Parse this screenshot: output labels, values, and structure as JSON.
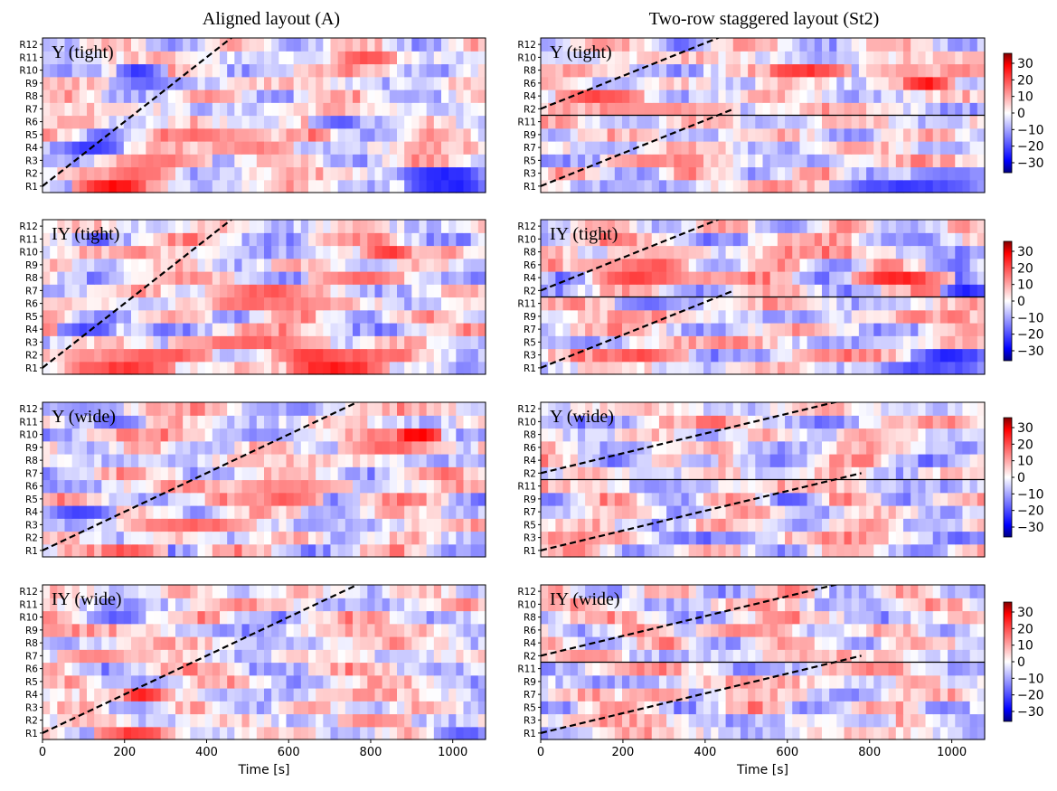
{
  "column_titles": [
    "Aligned layout (A)",
    "Two-row staggered layout (St2)"
  ],
  "colormap": {
    "name": "bwr",
    "low": "#0000ff",
    "mid": "#ffffff",
    "high": "#ff0000"
  },
  "colorbar": {
    "vmin": -36,
    "vmax": 36,
    "ticks": [
      30,
      20,
      10,
      0,
      -10,
      -20,
      -30
    ],
    "tick_labels": [
      "30",
      "20",
      "10",
      "0",
      "−10",
      "−20",
      "−30"
    ]
  },
  "chart_data": [
    {
      "type": "heatmap",
      "column": "A",
      "label": "Y (tight)",
      "xlabel": "",
      "xlim": [
        0,
        1080
      ],
      "rows": [
        "R1",
        "R2",
        "R3",
        "R4",
        "R5",
        "R6",
        "R7",
        "R8",
        "R9",
        "R10",
        "R11",
        "R12"
      ],
      "groups": [
        [
          "R1",
          "R2",
          "R3",
          "R4",
          "R5",
          "R6",
          "R7",
          "R8",
          "R9",
          "R10",
          "R11",
          "R12"
        ]
      ],
      "wake_lines": [
        [
          [
            0,
            0.5
          ],
          [
            480,
            12.5
          ]
        ]
      ],
      "features": [
        {
          "row": "R1",
          "t": [
            80,
            260
          ],
          "v": 32
        },
        {
          "row": "R1",
          "t": [
            880,
            1080
          ],
          "v": -34
        },
        {
          "row": "R2",
          "t": [
            150,
            330
          ],
          "v": 20
        },
        {
          "row": "R2",
          "t": [
            880,
            1080
          ],
          "v": -30
        },
        {
          "row": "R3",
          "t": [
            200,
            420
          ],
          "v": 18
        },
        {
          "row": "R4",
          "t": [
            50,
            200
          ],
          "v": -26
        },
        {
          "row": "R4",
          "t": [
            430,
            620
          ],
          "v": 18
        },
        {
          "row": "R5",
          "t": [
            300,
            560
          ],
          "v": 20
        },
        {
          "row": "R6",
          "t": [
            650,
            780
          ],
          "v": -22
        },
        {
          "row": "R9",
          "t": [
            160,
            320
          ],
          "v": -20
        },
        {
          "row": "R10",
          "t": [
            180,
            300
          ],
          "v": -30
        },
        {
          "row": "R11",
          "t": [
            720,
            860
          ],
          "v": 22
        }
      ]
    },
    {
      "type": "heatmap",
      "column": "St2",
      "label": "Y (tight)",
      "xlabel": "",
      "xlim": [
        0,
        1080
      ],
      "rows": [
        "R1",
        "R3",
        "R5",
        "R7",
        "R9",
        "R11",
        "R2",
        "R4",
        "R6",
        "R8",
        "R10",
        "R12"
      ],
      "groups": [
        [
          "R1",
          "R3",
          "R5",
          "R7",
          "R9",
          "R11"
        ],
        [
          "R2",
          "R4",
          "R6",
          "R8",
          "R10",
          "R12"
        ]
      ],
      "wake_lines": [
        [
          [
            0,
            0.5
          ],
          [
            470,
            6.5
          ]
        ],
        [
          [
            0,
            6.5
          ],
          [
            470,
            12.5
          ]
        ]
      ],
      "features": [
        {
          "row": "R1",
          "t": [
            700,
            1080
          ],
          "v": -24
        },
        {
          "row": "R3",
          "t": [
            900,
            1080
          ],
          "v": -22
        },
        {
          "row": "R5",
          "t": [
            150,
            330
          ],
          "v": 14
        },
        {
          "row": "R2",
          "t": [
            160,
            480
          ],
          "v": 18
        },
        {
          "row": "R4",
          "t": [
            40,
            260
          ],
          "v": 22
        },
        {
          "row": "R6",
          "t": [
            880,
            1000
          ],
          "v": 30
        },
        {
          "row": "R8",
          "t": [
            550,
            760
          ],
          "v": 26
        },
        {
          "row": "R8",
          "t": [
            780,
            950
          ],
          "v": 16
        }
      ]
    },
    {
      "type": "heatmap",
      "column": "A",
      "label": "IY (tight)",
      "xlabel": "",
      "xlim": [
        0,
        1080
      ],
      "rows": [
        "R1",
        "R2",
        "R3",
        "R4",
        "R5",
        "R6",
        "R7",
        "R8",
        "R9",
        "R10",
        "R11",
        "R12"
      ],
      "groups": [
        [
          "R1",
          "R2",
          "R3",
          "R4",
          "R5",
          "R6",
          "R7",
          "R8",
          "R9",
          "R10",
          "R11",
          "R12"
        ]
      ],
      "wake_lines": [
        [
          [
            0,
            0.5
          ],
          [
            480,
            12.5
          ]
        ]
      ],
      "features": [
        {
          "row": "R1",
          "t": [
            60,
            330
          ],
          "v": 30
        },
        {
          "row": "R1",
          "t": [
            600,
            840
          ],
          "v": 34
        },
        {
          "row": "R2",
          "t": [
            80,
            420
          ],
          "v": 22
        },
        {
          "row": "R2",
          "t": [
            560,
            900
          ],
          "v": 26
        },
        {
          "row": "R3",
          "t": [
            300,
            700
          ],
          "v": 20
        },
        {
          "row": "R4",
          "t": [
            30,
            180
          ],
          "v": -30
        },
        {
          "row": "R6",
          "t": [
            420,
            700
          ],
          "v": 22
        },
        {
          "row": "R7",
          "t": [
            400,
            640
          ],
          "v": 22
        },
        {
          "row": "R8",
          "t": [
            650,
            880
          ],
          "v": 18
        },
        {
          "row": "R10",
          "t": [
            780,
            900
          ],
          "v": 24
        },
        {
          "row": "R1",
          "t": [
            980,
            1080
          ],
          "v": -18
        }
      ]
    },
    {
      "type": "heatmap",
      "column": "St2",
      "label": "IY (tight)",
      "xlabel": "",
      "xlim": [
        0,
        1080
      ],
      "rows": [
        "R1",
        "R3",
        "R5",
        "R7",
        "R9",
        "R11",
        "R2",
        "R4",
        "R6",
        "R8",
        "R10",
        "R12"
      ],
      "groups": [
        [
          "R1",
          "R3",
          "R5",
          "R7",
          "R9",
          "R11"
        ],
        [
          "R2",
          "R4",
          "R6",
          "R8",
          "R10",
          "R12"
        ]
      ],
      "wake_lines": [
        [
          [
            0,
            0.5
          ],
          [
            470,
            6.5
          ]
        ],
        [
          [
            0,
            6.5
          ],
          [
            470,
            12.5
          ]
        ]
      ],
      "features": [
        {
          "row": "R1",
          "t": [
            820,
            1080
          ],
          "v": -28
        },
        {
          "row": "R3",
          "t": [
            160,
            360
          ],
          "v": 22
        },
        {
          "row": "R3",
          "t": [
            900,
            1080
          ],
          "v": -26
        },
        {
          "row": "R11",
          "t": [
            180,
            320
          ],
          "v": -18
        },
        {
          "row": "R2",
          "t": [
            980,
            1080
          ],
          "v": -30
        },
        {
          "row": "R4",
          "t": [
            120,
            480
          ],
          "v": 22
        },
        {
          "row": "R4",
          "t": [
            760,
            1000
          ],
          "v": 26
        },
        {
          "row": "R6",
          "t": [
            80,
            360
          ],
          "v": 20
        },
        {
          "row": "R8",
          "t": [
            160,
            420
          ],
          "v": 16
        }
      ]
    },
    {
      "type": "heatmap",
      "column": "A",
      "label": "Y (wide)",
      "xlabel": "",
      "xlim": [
        0,
        1080
      ],
      "rows": [
        "R1",
        "R2",
        "R3",
        "R4",
        "R5",
        "R6",
        "R7",
        "R8",
        "R9",
        "R10",
        "R11",
        "R12"
      ],
      "groups": [
        [
          "R1",
          "R2",
          "R3",
          "R4",
          "R5",
          "R6",
          "R7",
          "R8",
          "R9",
          "R10",
          "R11",
          "R12"
        ]
      ],
      "wake_lines": [
        [
          [
            0,
            0.5
          ],
          [
            800,
            12.5
          ]
        ]
      ],
      "features": [
        {
          "row": "R1",
          "t": [
            140,
            300
          ],
          "v": 24
        },
        {
          "row": "R4",
          "t": [
            20,
            180
          ],
          "v": -26
        },
        {
          "row": "R3",
          "t": [
            200,
            520
          ],
          "v": 18
        },
        {
          "row": "R5",
          "t": [
            540,
            680
          ],
          "v": 26
        },
        {
          "row": "R6",
          "t": [
            500,
            760
          ],
          "v": 20
        },
        {
          "row": "R10",
          "t": [
            860,
            980
          ],
          "v": 34
        },
        {
          "row": "R11",
          "t": [
            120,
            260
          ],
          "v": -20
        },
        {
          "row": "R12",
          "t": [
            40,
            200
          ],
          "v": -12
        },
        {
          "row": "R9",
          "t": [
            720,
            1000
          ],
          "v": 18
        }
      ]
    },
    {
      "type": "heatmap",
      "column": "St2",
      "label": "Y (wide)",
      "xlabel": "",
      "xlim": [
        0,
        1080
      ],
      "rows": [
        "R1",
        "R3",
        "R5",
        "R7",
        "R9",
        "R11",
        "R2",
        "R4",
        "R6",
        "R8",
        "R10",
        "R12"
      ],
      "groups": [
        [
          "R1",
          "R3",
          "R5",
          "R7",
          "R9",
          "R11"
        ],
        [
          "R2",
          "R4",
          "R6",
          "R8",
          "R10",
          "R12"
        ]
      ],
      "wake_lines": [
        [
          [
            0,
            0.5
          ],
          [
            780,
            6.5
          ]
        ],
        [
          [
            0,
            6.5
          ],
          [
            780,
            12.5
          ]
        ]
      ],
      "features": [
        {
          "row": "R9",
          "t": [
            560,
            660
          ],
          "v": -20
        },
        {
          "row": "R1",
          "t": [
            880,
            960
          ],
          "v": -14
        },
        {
          "row": "R4",
          "t": [
            340,
            440
          ],
          "v": -16
        },
        {
          "row": "R8",
          "t": [
            720,
            820
          ],
          "v": 14
        },
        {
          "row": "R3",
          "t": [
            60,
            160
          ],
          "v": 12
        }
      ]
    },
    {
      "type": "heatmap",
      "column": "A",
      "label": "IY (wide)",
      "xlabel": "Time [s]",
      "xlim": [
        0,
        1080
      ],
      "xticks": [
        0,
        200,
        400,
        600,
        800,
        1000
      ],
      "rows": [
        "R1",
        "R2",
        "R3",
        "R4",
        "R5",
        "R6",
        "R7",
        "R8",
        "R9",
        "R10",
        "R11",
        "R12"
      ],
      "groups": [
        [
          "R1",
          "R2",
          "R3",
          "R4",
          "R5",
          "R6",
          "R7",
          "R8",
          "R9",
          "R10",
          "R11",
          "R12"
        ]
      ],
      "wake_lines": [
        [
          [
            0,
            0.5
          ],
          [
            800,
            12.5
          ]
        ]
      ],
      "features": [
        {
          "row": "R1",
          "t": [
            120,
            300
          ],
          "v": 26
        },
        {
          "row": "R4",
          "t": [
            200,
            300
          ],
          "v": 28
        },
        {
          "row": "R7",
          "t": [
            40,
            200
          ],
          "v": 20
        },
        {
          "row": "R10",
          "t": [
            120,
            260
          ],
          "v": -18
        },
        {
          "row": "R1",
          "t": [
            960,
            1080
          ],
          "v": -22
        },
        {
          "row": "R2",
          "t": [
            720,
            900
          ],
          "v": 14
        }
      ]
    },
    {
      "type": "heatmap",
      "column": "St2",
      "label": "IY (wide)",
      "xlabel": "Time [s]",
      "xlim": [
        0,
        1080
      ],
      "xticks": [
        0,
        200,
        400,
        600,
        800,
        1000
      ],
      "rows": [
        "R1",
        "R3",
        "R5",
        "R7",
        "R9",
        "R11",
        "R2",
        "R4",
        "R6",
        "R8",
        "R10",
        "R12"
      ],
      "groups": [
        [
          "R1",
          "R3",
          "R5",
          "R7",
          "R9",
          "R11"
        ],
        [
          "R2",
          "R4",
          "R6",
          "R8",
          "R10",
          "R12"
        ]
      ],
      "wake_lines": [
        [
          [
            0,
            0.5
          ],
          [
            780,
            6.5
          ]
        ],
        [
          [
            0,
            6.5
          ],
          [
            780,
            12.5
          ]
        ]
      ],
      "features": [
        {
          "row": "R7",
          "t": [
            220,
            360
          ],
          "v": 18
        },
        {
          "row": "R2",
          "t": [
            40,
            200
          ],
          "v": 16
        },
        {
          "row": "R3",
          "t": [
            720,
            860
          ],
          "v": -14
        },
        {
          "row": "R6",
          "t": [
            380,
            560
          ],
          "v": 16
        },
        {
          "row": "R9",
          "t": [
            860,
            980
          ],
          "v": 18
        }
      ]
    }
  ]
}
